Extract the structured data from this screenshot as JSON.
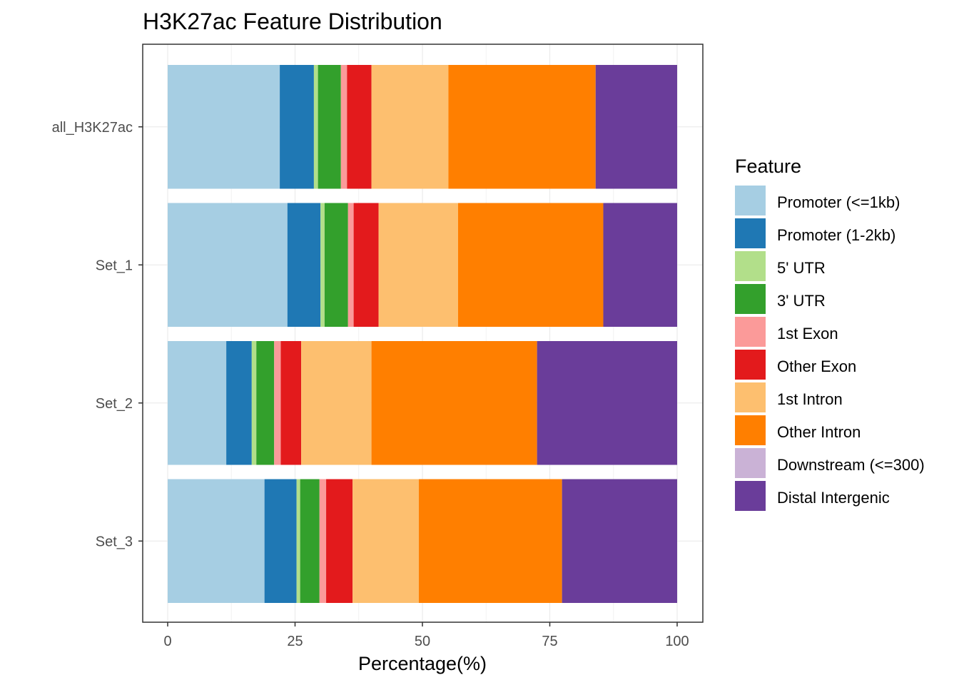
{
  "chart_data": {
    "type": "bar",
    "orientation": "horizontal",
    "stacked": true,
    "title": "H3K27ac Feature Distribution",
    "xlabel": "Percentage(%)",
    "ylabel": "",
    "xlim": [
      0,
      100
    ],
    "xticks": [
      0,
      25,
      50,
      75,
      100
    ],
    "xtick_labels": [
      "0",
      "25",
      "50",
      "75",
      "100"
    ],
    "categories": [
      "all_H3K27ac",
      "Set_1",
      "Set_2",
      "Set_3"
    ],
    "legend_title": "Feature",
    "legend_position": "right",
    "grid": true,
    "series": [
      {
        "name": "Promoter (<=1kb)",
        "color": "#A6CEE3",
        "values": [
          22.0,
          23.5,
          11.5,
          19.0
        ]
      },
      {
        "name": "Promoter (1-2kb)",
        "color": "#1F78B4",
        "values": [
          6.7,
          6.5,
          5.0,
          6.3
        ]
      },
      {
        "name": "5' UTR",
        "color": "#B2DF8A",
        "values": [
          0.8,
          0.8,
          0.9,
          0.7
        ]
      },
      {
        "name": "3' UTR",
        "color": "#33A02C",
        "values": [
          4.5,
          4.6,
          3.5,
          3.8
        ]
      },
      {
        "name": "1st Exon",
        "color": "#FB9A99",
        "values": [
          1.2,
          1.1,
          1.3,
          1.3
        ]
      },
      {
        "name": "Other Exon",
        "color": "#E31A1C",
        "values": [
          4.8,
          4.9,
          4.0,
          5.2
        ]
      },
      {
        "name": "1st Intron",
        "color": "#FDBF6F",
        "values": [
          15.1,
          15.6,
          13.8,
          13.0
        ]
      },
      {
        "name": "Other Intron",
        "color": "#FF7F00",
        "values": [
          28.9,
          28.5,
          32.5,
          28.1
        ]
      },
      {
        "name": "Downstream (<=300)",
        "color": "#CAB2D6",
        "values": [
          0.0,
          0.0,
          0.0,
          0.0
        ]
      },
      {
        "name": "Distal Intergenic",
        "color": "#6A3D9A",
        "values": [
          16.0,
          14.5,
          27.5,
          22.6
        ]
      }
    ]
  }
}
